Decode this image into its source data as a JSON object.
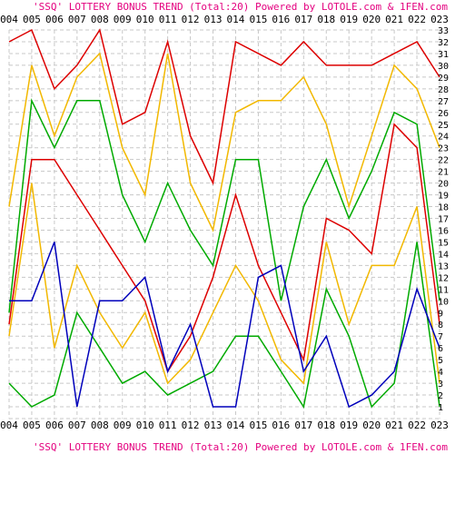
{
  "chart_data": {
    "type": "line",
    "title": "'SSQ' LOTTERY BONUS TREND (Total:20)  Powered by LOTOLE.com & 1FEN.com",
    "categories": [
      "004",
      "005",
      "006",
      "007",
      "008",
      "009",
      "010",
      "011",
      "012",
      "013",
      "014",
      "015",
      "016",
      "017",
      "018",
      "019",
      "020",
      "021",
      "022",
      "023"
    ],
    "y_ticks": [
      1,
      2,
      3,
      4,
      5,
      6,
      7,
      8,
      9,
      10,
      11,
      12,
      13,
      14,
      15,
      16,
      17,
      18,
      19,
      20,
      21,
      22,
      23,
      24,
      25,
      26,
      27,
      28,
      29,
      30,
      31,
      32,
      33
    ],
    "ylim": [
      0,
      33
    ],
    "grid": true,
    "series": [
      {
        "color": "#dd0000",
        "values": [
          32,
          33,
          28,
          30,
          33,
          25,
          26,
          32,
          24,
          20,
          32,
          31,
          30,
          32,
          30,
          30,
          30,
          31,
          32,
          29
        ]
      },
      {
        "color": "#f2b800",
        "values": [
          18,
          30,
          24,
          29,
          31,
          23,
          19,
          31,
          20,
          16,
          26,
          27,
          27,
          29,
          25,
          18,
          24,
          30,
          28,
          23
        ]
      },
      {
        "color": "#00aa00",
        "values": [
          9,
          27,
          23,
          27,
          27,
          19,
          15,
          20,
          16,
          13,
          22,
          22,
          10,
          18,
          22,
          17,
          21,
          26,
          25,
          10
        ]
      },
      {
        "color": "#dd0000",
        "values": [
          8,
          22,
          22,
          19,
          16,
          13,
          10,
          4,
          7,
          12,
          19,
          13,
          9,
          5,
          17,
          16,
          14,
          25,
          23,
          8
        ]
      },
      {
        "color": "#f2b800",
        "values": [
          7,
          20,
          6,
          13,
          9,
          6,
          9,
          3,
          5,
          9,
          13,
          10,
          5,
          3,
          15,
          8,
          13,
          13,
          18,
          3
        ]
      },
      {
        "color": "#00aa00",
        "values": [
          3,
          1,
          2,
          9,
          6,
          3,
          4,
          2,
          3,
          4,
          7,
          7,
          4,
          1,
          11,
          7,
          1,
          3,
          15,
          1
        ]
      },
      {
        "color": "#0000bb",
        "values": [
          10,
          10,
          15,
          1,
          10,
          10,
          12,
          4,
          8,
          1,
          1,
          12,
          13,
          4,
          7,
          1,
          2,
          4,
          11,
          6
        ]
      }
    ]
  }
}
